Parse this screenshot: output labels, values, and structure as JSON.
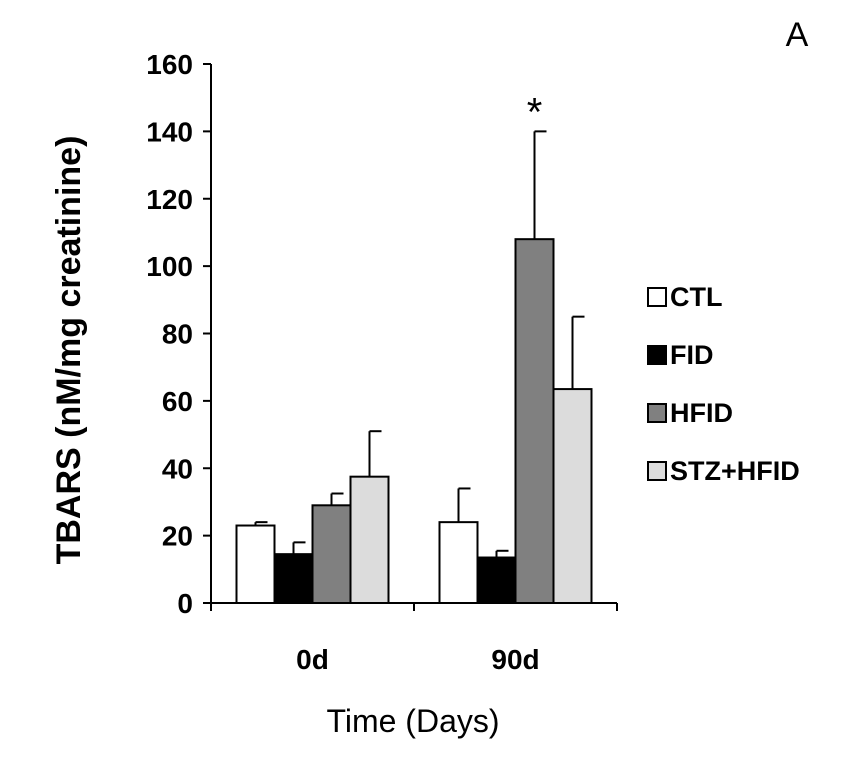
{
  "chart_data": {
    "type": "bar",
    "panel_label": "A",
    "ylabel": "TBARS (nM/mg creatinine)",
    "xlabel": "Time (Days)",
    "ylim": [
      0,
      160
    ],
    "yticks": [
      0,
      20,
      40,
      60,
      80,
      100,
      120,
      140,
      160
    ],
    "categories": [
      "0d",
      "90d"
    ],
    "legend_position": "right",
    "series": [
      {
        "name": "CTL",
        "color": "#ffffff",
        "values": [
          23,
          24
        ],
        "errors": [
          1,
          10
        ]
      },
      {
        "name": "FID",
        "color": "#000000",
        "values": [
          14.5,
          13.5
        ],
        "errors": [
          3.5,
          2
        ]
      },
      {
        "name": "HFID",
        "color": "#808080",
        "values": [
          29,
          108
        ],
        "errors": [
          3.5,
          32
        ]
      },
      {
        "name": "STZ+HFID",
        "color": "#dcdcdc",
        "values": [
          37.5,
          63.5
        ],
        "errors": [
          13.5,
          21.5
        ]
      }
    ],
    "annotations": [
      {
        "text": "*",
        "category": "90d",
        "series": "HFID"
      }
    ]
  }
}
